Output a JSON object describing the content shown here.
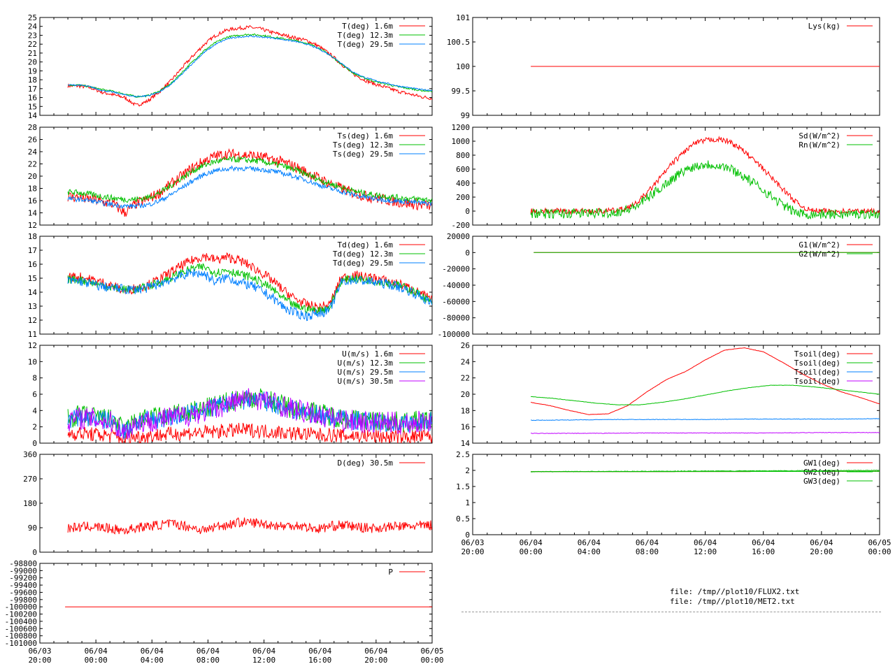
{
  "colors": {
    "red": "#ff0000",
    "green": "#00c000",
    "blue": "#0080ff",
    "purple": "#c000ff"
  },
  "x_axis": {
    "labels": [
      [
        "06/03",
        "20:00"
      ],
      [
        "06/04",
        "00:00"
      ],
      [
        "06/04",
        "04:00"
      ],
      [
        "06/04",
        "08:00"
      ],
      [
        "06/04",
        "12:00"
      ],
      [
        "06/04",
        "16:00"
      ],
      [
        "06/04",
        "20:00"
      ],
      [
        "06/05",
        "00:00"
      ]
    ]
  },
  "files": [
    "file: /tmp//plot10/FLUX2.txt",
    "file: /tmp//plot10/MET2.txt"
  ],
  "chart_data": [
    {
      "id": "temp",
      "type": "line",
      "ylim": [
        14,
        25
      ],
      "yticks": [
        "14",
        "15",
        "16",
        "17",
        "18",
        "19",
        "20",
        "21",
        "22",
        "23",
        "24",
        "25"
      ],
      "start": 2,
      "series": [
        {
          "name": "T(deg)  1.6m",
          "color": "red",
          "noise": 0.2,
          "values": [
            17.3,
            17.3,
            17.1,
            16.6,
            16.3,
            16.0,
            15.1,
            15.6,
            16.6,
            17.8,
            19.3,
            20.7,
            22.0,
            23.0,
            23.6,
            23.8,
            23.9,
            23.7,
            23.3,
            23.0,
            22.7,
            22.4,
            21.8,
            20.9,
            19.8,
            18.7,
            18.0,
            17.5,
            17.1,
            16.7,
            16.4,
            16.1,
            15.9
          ]
        },
        {
          "name": "T(deg) 12.3m",
          "color": "green",
          "noise": 0.1,
          "values": [
            17.4,
            17.4,
            17.2,
            16.9,
            16.7,
            16.4,
            16.1,
            16.2,
            16.7,
            17.5,
            18.8,
            20.1,
            21.3,
            22.2,
            22.8,
            23.0,
            23.1,
            23.0,
            22.8,
            22.6,
            22.4,
            22.1,
            21.6,
            20.8,
            19.8,
            18.8,
            18.2,
            17.8,
            17.5,
            17.2,
            17.0,
            16.8,
            16.7
          ]
        },
        {
          "name": "T(deg) 29.5m",
          "color": "blue",
          "noise": 0.08,
          "values": [
            17.4,
            17.4,
            17.2,
            16.8,
            16.6,
            16.3,
            16.1,
            16.2,
            16.6,
            17.4,
            18.6,
            19.9,
            21.1,
            22.0,
            22.6,
            22.8,
            22.9,
            22.8,
            22.7,
            22.5,
            22.3,
            22.0,
            21.5,
            20.8,
            19.9,
            18.9,
            18.3,
            17.9,
            17.6,
            17.3,
            17.1,
            16.9,
            16.8
          ]
        }
      ]
    },
    {
      "id": "tsurf",
      "type": "line",
      "ylim": [
        12,
        28
      ],
      "yticks": [
        "12",
        "14",
        "16",
        "18",
        "20",
        "22",
        "24",
        "26",
        "28"
      ],
      "start": 2,
      "series": [
        {
          "name": "Ts(deg)  1.6m",
          "color": "red",
          "noise": 0.9,
          "values": [
            16.7,
            16.5,
            16.2,
            15.8,
            15.4,
            14.0,
            15.5,
            16.2,
            17.2,
            18.6,
            20.0,
            21.4,
            22.5,
            23.3,
            23.6,
            23.5,
            23.4,
            23.1,
            22.7,
            22.2,
            21.5,
            20.6,
            19.7,
            18.8,
            18.0,
            17.3,
            16.8,
            16.4,
            16.1,
            15.8,
            15.5,
            15.3,
            15.1
          ]
        },
        {
          "name": "Ts(deg) 12.3m",
          "color": "green",
          "noise": 0.5,
          "values": [
            17.4,
            17.3,
            17.0,
            16.7,
            16.4,
            16.2,
            16.2,
            16.5,
            17.2,
            18.4,
            19.7,
            20.9,
            21.8,
            22.4,
            22.7,
            22.7,
            22.6,
            22.4,
            22.0,
            21.6,
            21.0,
            20.3,
            19.5,
            18.8,
            18.2,
            17.6,
            17.2,
            16.9,
            16.7,
            16.5,
            16.3,
            16.2,
            16.1
          ]
        },
        {
          "name": "Ts(deg) 29.5m",
          "color": "blue",
          "noise": 0.4,
          "values": [
            16.3,
            16.2,
            16.0,
            15.6,
            15.3,
            15.1,
            15.1,
            15.3,
            15.9,
            16.9,
            18.1,
            19.3,
            20.3,
            20.9,
            21.2,
            21.3,
            21.2,
            21.1,
            20.8,
            20.4,
            19.9,
            19.3,
            18.6,
            18.0,
            17.5,
            17.0,
            16.6,
            16.3,
            16.1,
            15.9,
            15.8,
            15.6,
            15.5
          ]
        }
      ]
    },
    {
      "id": "dew",
      "type": "line",
      "ylim": [
        11,
        18
      ],
      "yticks": [
        "11",
        "12",
        "13",
        "14",
        "15",
        "16",
        "17",
        "18"
      ],
      "start": 2,
      "series": [
        {
          "name": "Td(deg)  1.6m",
          "color": "red",
          "noise": 0.35,
          "values": [
            15.1,
            15.1,
            14.9,
            14.7,
            14.4,
            14.1,
            14.3,
            14.5,
            14.9,
            15.4,
            15.9,
            16.3,
            16.6,
            16.3,
            16.5,
            16.3,
            15.9,
            15.4,
            14.8,
            14.1,
            13.5,
            13.1,
            12.9,
            13.1,
            15.0,
            15.2,
            15.1,
            15.0,
            14.8,
            14.6,
            14.3,
            13.9,
            13.4
          ]
        },
        {
          "name": "Td(deg) 12.3m",
          "color": "green",
          "noise": 0.3,
          "values": [
            14.9,
            14.9,
            14.7,
            14.5,
            14.3,
            14.2,
            14.2,
            14.4,
            14.7,
            15.0,
            15.4,
            15.7,
            15.8,
            15.4,
            15.6,
            15.3,
            15.1,
            14.7,
            14.2,
            13.5,
            13.0,
            12.8,
            12.7,
            12.9,
            14.8,
            15.0,
            14.9,
            14.8,
            14.7,
            14.5,
            14.2,
            13.8,
            13.2
          ]
        },
        {
          "name": "Td(deg) 29.5m",
          "color": "blue",
          "noise": 0.35,
          "values": [
            14.8,
            14.8,
            14.6,
            14.4,
            14.3,
            14.2,
            14.2,
            14.3,
            14.6,
            14.9,
            15.2,
            15.4,
            15.3,
            14.7,
            15.1,
            14.7,
            14.5,
            14.1,
            13.6,
            12.9,
            12.5,
            12.3,
            12.5,
            12.7,
            14.7,
            14.9,
            14.8,
            14.7,
            14.6,
            14.4,
            14.1,
            13.7,
            13.1
          ]
        }
      ]
    },
    {
      "id": "wind",
      "type": "line",
      "ylim": [
        0,
        12
      ],
      "yticks": [
        "0",
        "2",
        "4",
        "6",
        "8",
        "10",
        "12"
      ],
      "start": 2,
      "series": [
        {
          "name": "U(m/s)  1.6m",
          "color": "red",
          "noise": 0.9,
          "values": [
            1.2,
            1.2,
            1.1,
            1.0,
            0.9,
            0.6,
            0.8,
            0.9,
            1.0,
            1.1,
            1.2,
            1.3,
            1.3,
            1.4,
            1.5,
            1.6,
            1.6,
            1.5,
            1.4,
            1.3,
            1.2,
            1.1,
            1.0,
            1.0,
            0.9,
            0.9,
            0.9,
            0.8,
            0.8,
            0.8,
            0.8,
            0.8,
            0.8
          ]
        },
        {
          "name": "U(m/s) 12.3m",
          "color": "green",
          "noise": 1.3,
          "values": [
            3.0,
            3.4,
            3.3,
            3.1,
            2.8,
            1.5,
            2.8,
            3.0,
            3.2,
            3.4,
            3.6,
            3.9,
            4.2,
            4.6,
            5.0,
            5.4,
            5.6,
            5.5,
            5.1,
            4.6,
            4.2,
            4.0,
            3.7,
            3.4,
            3.1,
            2.9,
            2.8,
            2.7,
            2.7,
            2.6,
            2.6,
            2.7,
            2.8
          ]
        },
        {
          "name": "U(m/s) 29.5m",
          "color": "blue",
          "noise": 1.2,
          "values": [
            2.9,
            3.2,
            3.1,
            2.9,
            2.6,
            1.4,
            2.6,
            2.8,
            3.0,
            3.2,
            3.4,
            3.7,
            4.0,
            4.4,
            4.8,
            5.2,
            5.4,
            5.3,
            4.9,
            4.4,
            4.0,
            3.8,
            3.5,
            3.2,
            3.0,
            2.8,
            2.7,
            2.6,
            2.6,
            2.5,
            2.5,
            2.6,
            2.7
          ]
        },
        {
          "name": "U(m/s) 30.5m",
          "color": "purple",
          "noise": 1.4,
          "values": [
            2.8,
            3.1,
            3.0,
            2.8,
            2.5,
            1.3,
            2.5,
            2.7,
            2.9,
            3.1,
            3.3,
            3.6,
            3.9,
            4.3,
            4.8,
            5.3,
            5.5,
            5.4,
            5.0,
            4.5,
            4.1,
            3.7,
            3.4,
            3.1,
            2.9,
            2.7,
            2.6,
            2.5,
            2.5,
            2.4,
            2.4,
            2.6,
            2.8
          ]
        }
      ]
    },
    {
      "id": "dir",
      "type": "line",
      "ylim": [
        0,
        360
      ],
      "yticks": [
        "0",
        "90",
        "180",
        "270",
        "360"
      ],
      "start": 2,
      "series": [
        {
          "name": "D(deg)  30.5m",
          "color": "red",
          "noise": 18,
          "values": [
            88,
            92,
            95,
            90,
            85,
            80,
            90,
            95,
            100,
            105,
            100,
            90,
            80,
            95,
            100,
            110,
            110,
            105,
            100,
            95,
            100,
            92,
            85,
            95,
            100,
            95,
            90,
            88,
            92,
            95,
            95,
            98,
            100
          ]
        }
      ]
    },
    {
      "id": "press",
      "type": "line",
      "ylim": [
        -101000,
        -98800
      ],
      "yticks": [
        "-101000",
        "-100800",
        "-100600",
        "-100400",
        "-100200",
        "-100000",
        "-99800",
        "-99600",
        "-99400",
        "-99200",
        "-99000",
        "-98800"
      ],
      "start": 1.8,
      "series": [
        {
          "name": "P",
          "color": "red",
          "noise": 0,
          "values": [
            -100000,
            -100000
          ]
        }
      ]
    },
    {
      "id": "lys",
      "type": "line",
      "ylim": [
        99,
        101
      ],
      "yticks": [
        "99",
        "99.5",
        "100",
        "100.5",
        "101"
      ],
      "start": 4,
      "series": [
        {
          "name": "Lys(kg)",
          "color": "red",
          "noise": 0,
          "values": [
            100,
            100
          ]
        }
      ]
    },
    {
      "id": "rad",
      "type": "line",
      "ylim": [
        -200,
        1200
      ],
      "yticks": [
        "-200",
        "0",
        "200",
        "400",
        "600",
        "800",
        "1000",
        "1200"
      ],
      "start": 4,
      "series": [
        {
          "name": "Sd(W/m^2)",
          "color": "red",
          "noise": 40,
          "values": [
            0,
            0,
            0,
            0,
            0,
            0,
            0,
            5,
            30,
            100,
            260,
            450,
            650,
            820,
            960,
            1010,
            1030,
            1000,
            900,
            760,
            600,
            430,
            260,
            100,
            10,
            0,
            0,
            0,
            0,
            0,
            0
          ]
        },
        {
          "name": "Rn(W/m^2)",
          "color": "green",
          "noise": 70,
          "values": [
            -30,
            -40,
            -40,
            -35,
            -30,
            -30,
            -30,
            -20,
            5,
            60,
            180,
            310,
            440,
            560,
            640,
            670,
            660,
            620,
            530,
            420,
            300,
            170,
            50,
            -30,
            -45,
            -45,
            -45,
            -45,
            -40,
            -40,
            -40
          ]
        }
      ]
    },
    {
      "id": "soilflux",
      "type": "line",
      "ylim": [
        -100000,
        20000
      ],
      "yticks": [
        "-100000",
        "-80000",
        "-60000",
        "-40000",
        "-20000",
        "0",
        "20000"
      ],
      "start": 4.2,
      "series": [
        {
          "name": "G1(W/m^2)",
          "color": "red",
          "noise": 0,
          "values": [
            0,
            0
          ]
        },
        {
          "name": "G2(W/m^2)",
          "color": "green",
          "noise": 0,
          "values": [
            0,
            0
          ]
        }
      ]
    },
    {
      "id": "tsoil",
      "type": "line",
      "ylim": [
        14,
        26
      ],
      "yticks": [
        "14",
        "16",
        "18",
        "20",
        "22",
        "24",
        "26"
      ],
      "start": 4,
      "series": [
        {
          "name": "Tsoil(deg)",
          "color": "red",
          "noise": 0.02,
          "values": [
            19.0,
            18.6,
            18.0,
            17.5,
            17.6,
            18.6,
            20.3,
            21.8,
            22.8,
            24.2,
            25.4,
            25.7,
            25.2,
            23.9,
            22.5,
            21.3,
            20.3,
            19.6,
            18.8
          ]
        },
        {
          "name": "Tsoil(deg)",
          "color": "green",
          "noise": 0.02,
          "values": [
            19.7,
            19.5,
            19.2,
            18.9,
            18.7,
            18.7,
            19.0,
            19.4,
            19.9,
            20.4,
            20.8,
            21.1,
            21.1,
            20.9,
            20.6,
            20.3,
            20.0
          ]
        },
        {
          "name": "Tsoil(deg)",
          "color": "blue",
          "noise": 0.03,
          "values": [
            16.8,
            16.85,
            16.9,
            16.9,
            16.9,
            16.95,
            16.95,
            16.95,
            17.0
          ]
        },
        {
          "name": "Tsoil(deg)",
          "color": "purple",
          "noise": 0.03,
          "values": [
            15.2,
            15.2,
            15.25,
            15.25,
            15.25,
            15.3,
            15.3
          ]
        }
      ]
    },
    {
      "id": "gw",
      "type": "line",
      "ylim": [
        0,
        2.5
      ],
      "yticks": [
        "0",
        "0.5",
        "1",
        "1.5",
        "2",
        "2.5"
      ],
      "start": 4,
      "series": [
        {
          "name": "GW1(deg)",
          "color": "red",
          "noise": 0,
          "values": [
            1.96,
            1.97
          ]
        },
        {
          "name": "GW2(deg)",
          "color": "green",
          "noise": 0.01,
          "values": [
            1.96,
            1.97,
            1.98,
            1.99,
            2.0
          ]
        },
        {
          "name": "GW3(deg)",
          "color": "green",
          "noise": 0,
          "values": [
            1.96,
            1.97
          ]
        }
      ]
    }
  ]
}
